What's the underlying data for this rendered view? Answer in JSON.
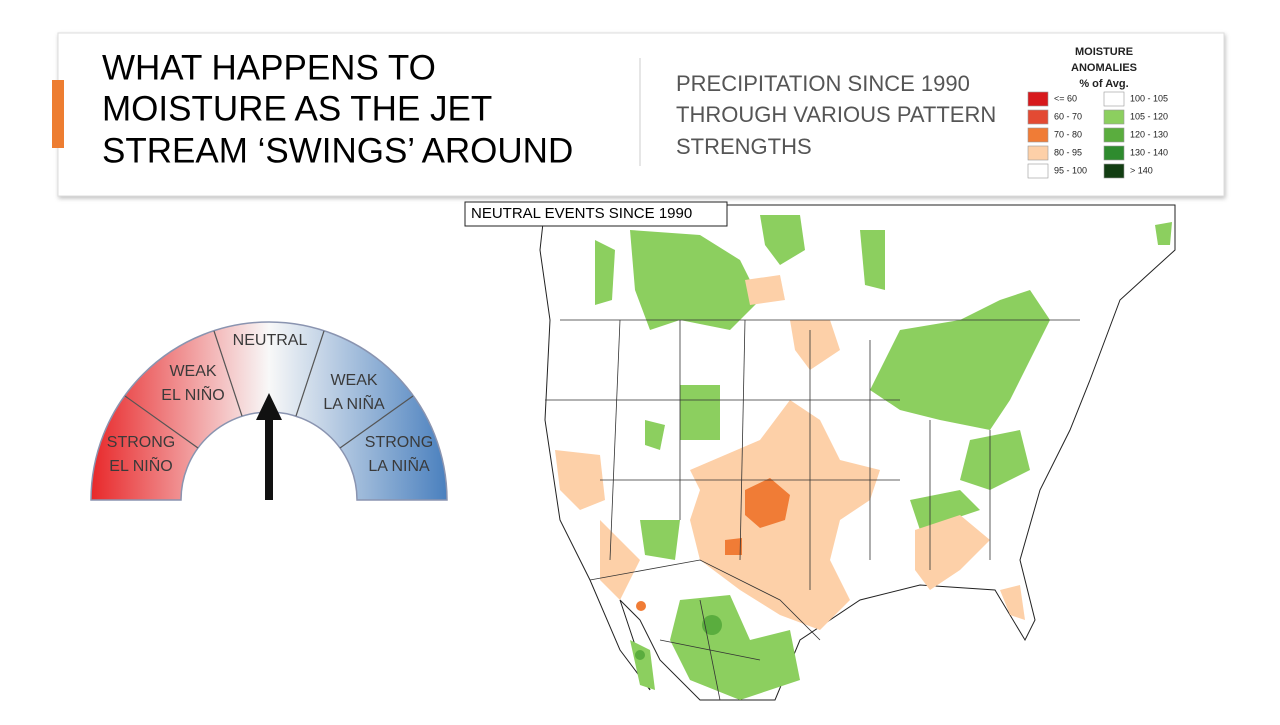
{
  "header": {
    "title_lines": [
      "WHAT HAPPENS TO",
      "MOISTURE AS THE JET",
      "STREAM ‘SWINGS’ AROUND"
    ],
    "subtitle_lines": [
      "PRECIPITATION SINCE 1990",
      "THROUGH VARIOUS PATTERN",
      "STRENGTHS"
    ]
  },
  "legend": {
    "title_lines": [
      "MOISTURE",
      "ANOMALIES",
      "% of Avg."
    ],
    "items": [
      {
        "label": "<= 60",
        "color": "#d7191c"
      },
      {
        "label": "60 - 70",
        "color": "#e34a33"
      },
      {
        "label": "70 - 80",
        "color": "#f07c36"
      },
      {
        "label": "80 - 95",
        "color": "#fdd0a8"
      },
      {
        "label": "95 - 100",
        "color": "#ffffff"
      },
      {
        "label": "100 - 105",
        "color": "#ffffff"
      },
      {
        "label": "105 - 120",
        "color": "#8ccf5f"
      },
      {
        "label": "120 - 130",
        "color": "#5aad3e"
      },
      {
        "label": "130 - 140",
        "color": "#2e8b2e"
      },
      {
        "label": "> 140",
        "color": "#123d12"
      }
    ]
  },
  "gauge": {
    "neutral": [
      "NEUTRAL"
    ],
    "weak_el_nino": [
      "WEAK",
      "EL NIÑO"
    ],
    "weak_la_nina": [
      "WEAK",
      "LA NIÑA"
    ],
    "strong_el_nino": [
      "STRONG",
      "EL NIÑO"
    ],
    "strong_la_nina": [
      "STRONG",
      "LA NIÑA"
    ]
  },
  "map": {
    "label": "NEUTRAL EVENTS SINCE 1990"
  }
}
